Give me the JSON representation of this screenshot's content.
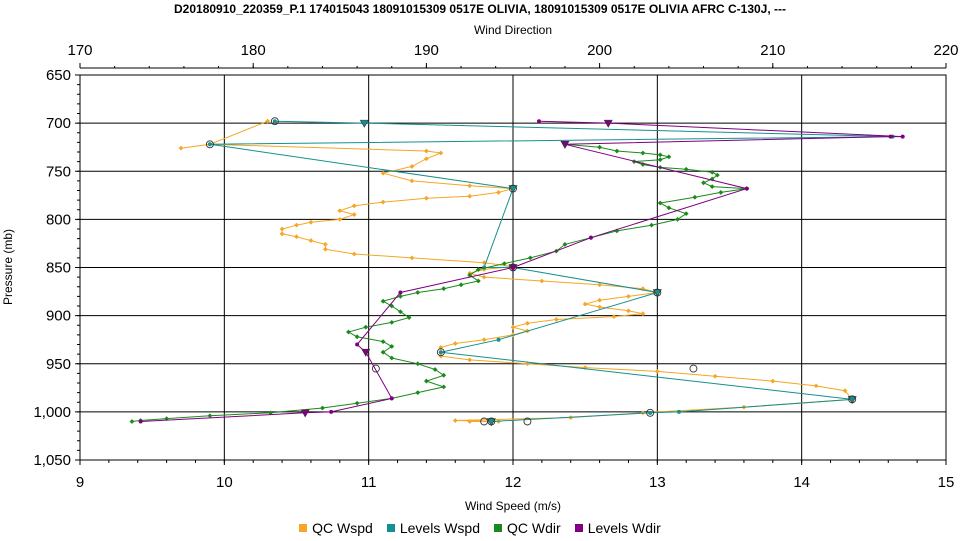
{
  "chart_data": {
    "type": "line",
    "title": "D20180910_220359_P.1 174015043 18091015309 0517E OLIVIA, 18091015309 0517E OLIVIA AFRC C-130J, ---",
    "xlabel": "Wind Speed (m/s)",
    "x2label": "Wind Direction",
    "ylabel": "Pressure (mb)",
    "xlim": [
      9,
      15
    ],
    "x2lim": [
      170,
      220
    ],
    "ylim": [
      650,
      1050
    ],
    "y_inverted": true,
    "grid": true,
    "legend_position": "bottom",
    "x_ticks": [
      "9",
      "10",
      "11",
      "12",
      "13",
      "14",
      "15"
    ],
    "x2_ticks": [
      "170",
      "180",
      "190",
      "200",
      "210",
      "220"
    ],
    "y_ticks": [
      "650",
      "700",
      "750",
      "800",
      "850",
      "900",
      "950",
      "1,000",
      "1,050"
    ],
    "colors": {
      "qc_wspd": "#f5a623",
      "levels_wspd": "#15908f",
      "qc_wdir": "#1a8a1a",
      "levels_wdir": "#800080"
    },
    "series": [
      {
        "name": "QC Wspd",
        "axis": "bottom",
        "color_key": "qc_wspd",
        "marker": "diamond",
        "points": [
          [
            10.3,
            698
          ],
          [
            9.9,
            722
          ],
          [
            9.7,
            726
          ],
          [
            9.9,
            722
          ],
          [
            11.4,
            729
          ],
          [
            11.5,
            731
          ],
          [
            11.4,
            737
          ],
          [
            11.3,
            745
          ],
          [
            11.1,
            752
          ],
          [
            11.3,
            760
          ],
          [
            11.7,
            765
          ],
          [
            12.0,
            768
          ],
          [
            11.9,
            772
          ],
          [
            11.7,
            776
          ],
          [
            11.4,
            778
          ],
          [
            11.1,
            782
          ],
          [
            10.9,
            786
          ],
          [
            10.8,
            791
          ],
          [
            10.9,
            795
          ],
          [
            10.8,
            800
          ],
          [
            10.6,
            803
          ],
          [
            10.5,
            806
          ],
          [
            10.4,
            810
          ],
          [
            10.4,
            815
          ],
          [
            10.5,
            818
          ],
          [
            10.6,
            822
          ],
          [
            10.7,
            826
          ],
          [
            10.7,
            831
          ],
          [
            10.9,
            836
          ],
          [
            11.3,
            840
          ],
          [
            11.8,
            845
          ],
          [
            12.0,
            849
          ],
          [
            11.8,
            852
          ],
          [
            11.7,
            856
          ],
          [
            11.8,
            860
          ],
          [
            12.2,
            864
          ],
          [
            12.6,
            868
          ],
          [
            12.9,
            872
          ],
          [
            13.0,
            876
          ],
          [
            12.8,
            880
          ],
          [
            12.6,
            884
          ],
          [
            12.5,
            888
          ],
          [
            12.6,
            891
          ],
          [
            12.8,
            895
          ],
          [
            12.9,
            898
          ],
          [
            12.7,
            901
          ],
          [
            12.3,
            904
          ],
          [
            12.1,
            908
          ],
          [
            12.0,
            912
          ],
          [
            12.1,
            916
          ],
          [
            12.0,
            920
          ],
          [
            11.8,
            925
          ],
          [
            11.6,
            929
          ],
          [
            11.5,
            933
          ],
          [
            11.5,
            938
          ],
          [
            11.5,
            942
          ],
          [
            11.7,
            946
          ],
          [
            12.1,
            950
          ],
          [
            12.5,
            954
          ],
          [
            13.0,
            958
          ],
          [
            13.4,
            963
          ],
          [
            13.8,
            968
          ],
          [
            14.1,
            973
          ],
          [
            14.3,
            978
          ],
          [
            14.35,
            987
          ],
          [
            13.6,
            995
          ],
          [
            12.9,
            1001
          ],
          [
            12.4,
            1006
          ],
          [
            11.6,
            1009
          ],
          [
            11.9,
            1010
          ],
          [
            11.7,
            1010
          ]
        ]
      },
      {
        "name": "Levels Wspd",
        "axis": "bottom",
        "color_key": "levels_wspd",
        "marker": "triangle",
        "points": [
          [
            10.35,
            698
          ],
          [
            10.97,
            700
          ],
          [
            14.63,
            714
          ],
          [
            9.9,
            722
          ],
          [
            12.0,
            768
          ],
          [
            11.8,
            850
          ],
          [
            12.0,
            850
          ],
          [
            13.0,
            876
          ],
          [
            11.9,
            925
          ],
          [
            11.5,
            938
          ],
          [
            14.35,
            987
          ],
          [
            13.15,
            1000
          ],
          [
            12.95,
            1001
          ],
          [
            11.85,
            1010
          ]
        ]
      },
      {
        "name": "QC Wdir",
        "axis": "top",
        "color_key": "qc_wdir",
        "marker": "diamond",
        "points": [
          [
            198.0,
            722
          ],
          [
            200.0,
            725
          ],
          [
            201.0,
            729
          ],
          [
            202.5,
            731
          ],
          [
            203.5,
            733
          ],
          [
            204.0,
            735
          ],
          [
            203.5,
            738
          ],
          [
            202.0,
            740
          ],
          [
            202.5,
            743
          ],
          [
            203.5,
            746
          ],
          [
            205.0,
            748
          ],
          [
            206.5,
            751
          ],
          [
            206.8,
            754
          ],
          [
            206.5,
            758
          ],
          [
            206.0,
            762
          ],
          [
            206.5,
            766
          ],
          [
            208.5,
            768
          ],
          [
            207.0,
            772
          ],
          [
            205.5,
            777
          ],
          [
            203.5,
            783
          ],
          [
            204.0,
            788
          ],
          [
            205.0,
            794
          ],
          [
            204.5,
            800
          ],
          [
            203.0,
            806
          ],
          [
            201.0,
            812
          ],
          [
            199.5,
            819
          ],
          [
            198.0,
            826
          ],
          [
            197.5,
            833
          ],
          [
            196.0,
            840
          ],
          [
            194.5,
            846
          ],
          [
            193.0,
            852
          ],
          [
            192.5,
            858
          ],
          [
            193.0,
            864
          ],
          [
            192.0,
            868
          ],
          [
            191.0,
            872
          ],
          [
            189.5,
            876
          ],
          [
            188.5,
            880
          ],
          [
            187.5,
            885
          ],
          [
            188.0,
            890
          ],
          [
            188.5,
            896
          ],
          [
            189.0,
            902
          ],
          [
            188.0,
            907
          ],
          [
            186.5,
            912
          ],
          [
            185.5,
            917
          ],
          [
            186.0,
            922
          ],
          [
            187.5,
            927
          ],
          [
            188.0,
            932
          ],
          [
            187.5,
            938
          ],
          [
            188.0,
            944
          ],
          [
            189.5,
            950
          ],
          [
            190.5,
            956
          ],
          [
            191.0,
            962
          ],
          [
            190.0,
            968
          ],
          [
            191.0,
            974
          ],
          [
            189.5,
            980
          ],
          [
            188.0,
            986
          ],
          [
            186.0,
            991
          ],
          [
            184.0,
            996
          ],
          [
            181.0,
            1001
          ],
          [
            177.5,
            1004
          ],
          [
            175.0,
            1007
          ],
          [
            173.5,
            1009
          ],
          [
            173.0,
            1010
          ]
        ]
      },
      {
        "name": "Levels Wdir",
        "axis": "top",
        "color_key": "levels_wdir",
        "marker": "triangle",
        "points": [
          [
            196.5,
            698
          ],
          [
            200.5,
            700
          ],
          [
            217.5,
            714
          ],
          [
            216.8,
            714
          ],
          [
            198.0,
            722
          ],
          [
            208.5,
            768
          ],
          [
            199.5,
            819
          ],
          [
            195.0,
            850
          ],
          [
            188.5,
            876
          ],
          [
            186.0,
            930
          ],
          [
            186.5,
            938
          ],
          [
            188.0,
            986
          ],
          [
            184.5,
            1000
          ],
          [
            183.0,
            1001
          ],
          [
            173.5,
            1010
          ]
        ]
      }
    ],
    "open_markers": {
      "axis": "bottom",
      "points": [
        [
          10.35,
          698
        ],
        [
          9.9,
          722
        ],
        [
          12.0,
          768
        ],
        [
          12.0,
          850
        ],
        [
          13.0,
          876
        ],
        [
          11.5,
          938
        ],
        [
          14.35,
          987
        ],
        [
          12.95,
          1001
        ],
        [
          11.8,
          1010
        ],
        [
          11.85,
          1010
        ],
        [
          12.1,
          1010
        ],
        [
          11.05,
          955
        ],
        [
          13.25,
          955
        ]
      ]
    }
  },
  "legend": [
    {
      "label": "QC Wspd",
      "color": "#f5a623"
    },
    {
      "label": "Levels Wspd",
      "color": "#15908f"
    },
    {
      "label": "QC Wdir",
      "color": "#1a8a1a"
    },
    {
      "label": "Levels Wdir",
      "color": "#800080"
    }
  ]
}
